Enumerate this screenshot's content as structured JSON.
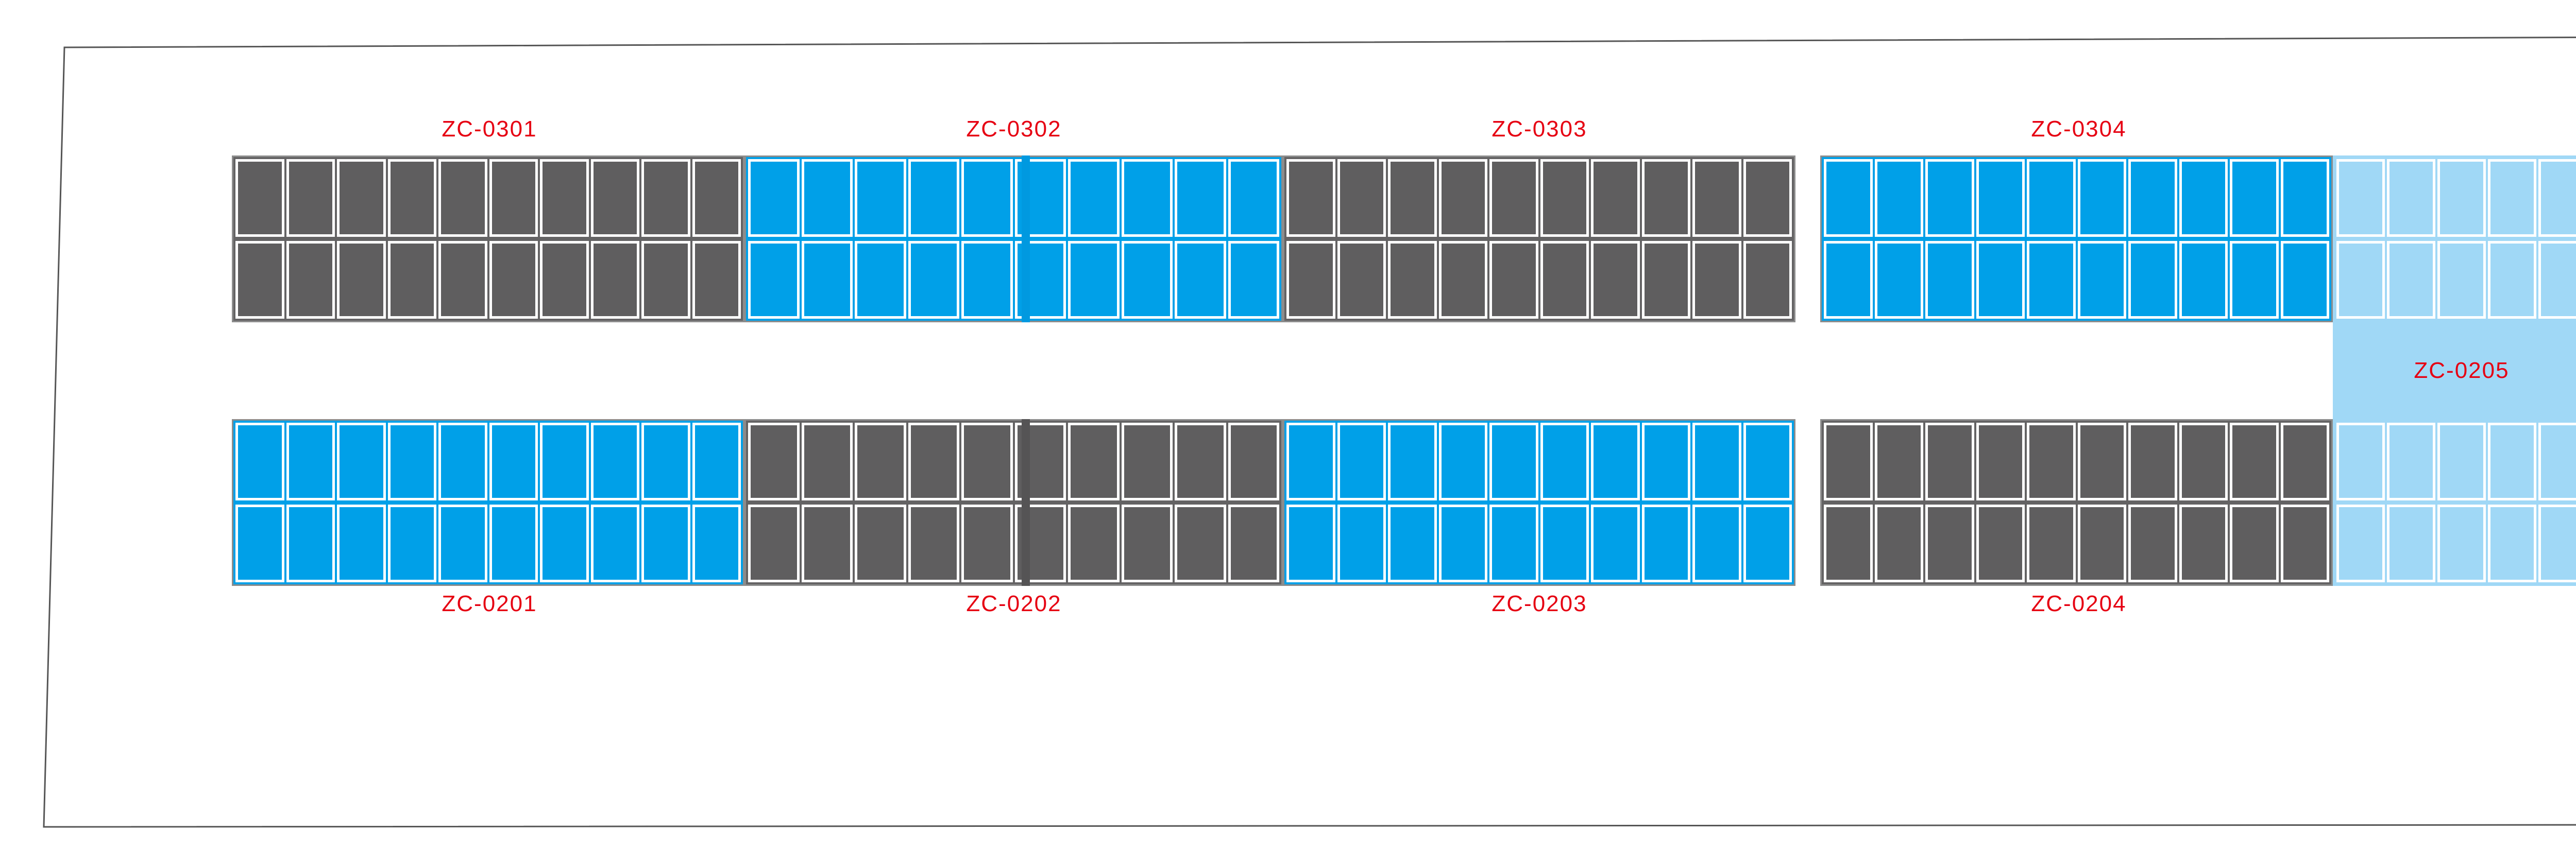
{
  "colors": {
    "occupied": "#5f5e5f",
    "available": "#00a0e8",
    "reserved": "#a0d8f6",
    "label": "#e60012",
    "outline": "#555555"
  },
  "zones": [
    {
      "id": "zc0301",
      "label": "ZC-0301",
      "status": "occupied",
      "columns": 10,
      "rows": 2
    },
    {
      "id": "zc0302",
      "label": "ZC-0302",
      "status": "available",
      "columns": 10,
      "rows": 2
    },
    {
      "id": "zc0303",
      "label": "ZC-0303",
      "status": "occupied",
      "columns": 10,
      "rows": 2
    },
    {
      "id": "zc0304",
      "label": "ZC-0304",
      "status": "available",
      "columns": 10,
      "rows": 2
    },
    {
      "id": "zc0201",
      "label": "ZC-0201",
      "status": "available",
      "columns": 10,
      "rows": 2
    },
    {
      "id": "zc0202",
      "label": "ZC-0202",
      "status": "occupied",
      "columns": 10,
      "rows": 2
    },
    {
      "id": "zc0203",
      "label": "ZC-0203",
      "status": "available",
      "columns": 10,
      "rows": 2
    },
    {
      "id": "zc0204",
      "label": "ZC-0204",
      "status": "occupied",
      "columns": 10,
      "rows": 2
    },
    {
      "id": "zc0205",
      "label": "ZC-0205",
      "status": "reserved",
      "columns": 5,
      "rows": 4
    }
  ]
}
